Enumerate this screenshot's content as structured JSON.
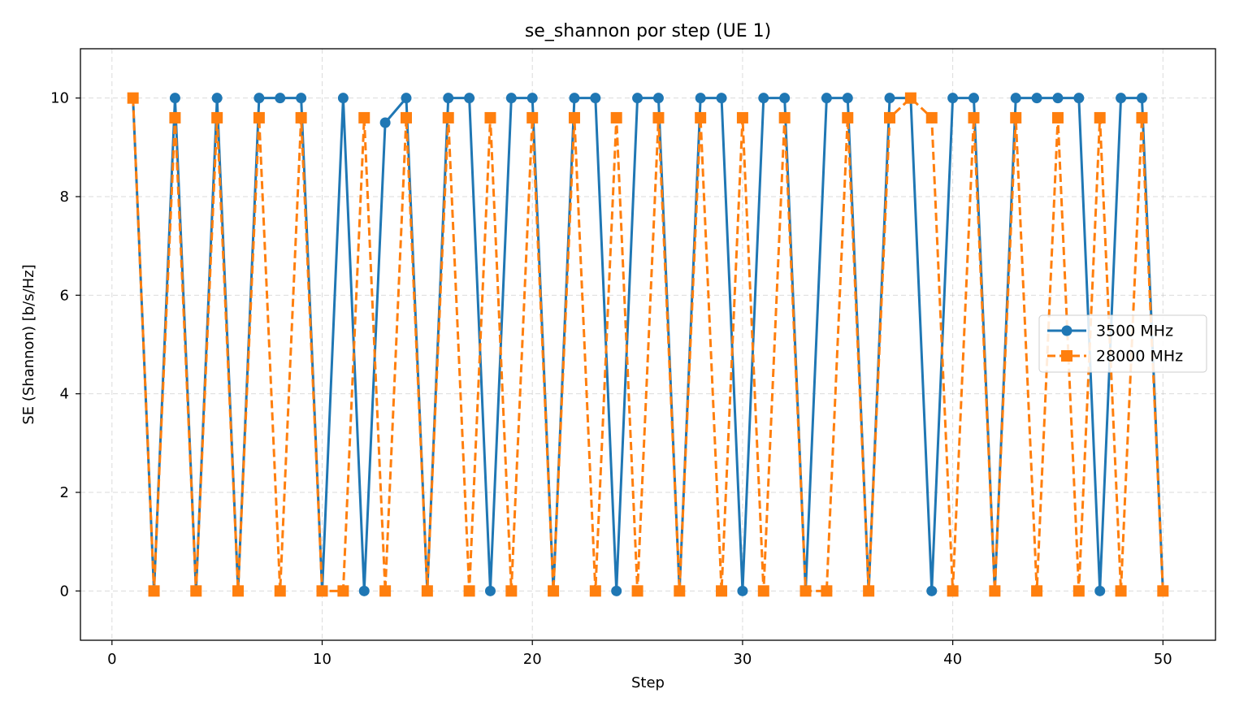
{
  "chart_data": {
    "type": "line",
    "title": "se_shannon por step (UE 1)",
    "xlabel": "Step",
    "ylabel": "SE (Shannon) [b/s/Hz]",
    "xlim": [
      -1.5,
      52.5
    ],
    "ylim": [
      -1,
      11
    ],
    "xticks": [
      0,
      10,
      20,
      30,
      40,
      50
    ],
    "yticks": [
      0,
      2,
      4,
      6,
      8,
      10
    ],
    "grid": true,
    "legend_position": "right",
    "x": [
      1,
      2,
      3,
      4,
      5,
      6,
      7,
      8,
      9,
      10,
      11,
      12,
      13,
      14,
      15,
      16,
      17,
      18,
      19,
      20,
      21,
      22,
      23,
      24,
      25,
      26,
      27,
      28,
      29,
      30,
      31,
      32,
      33,
      34,
      35,
      36,
      37,
      38,
      39,
      40,
      41,
      42,
      43,
      44,
      45,
      46,
      47,
      48,
      49,
      50
    ],
    "series": [
      {
        "name": "3500 MHz",
        "color": "#1f77b4",
        "marker": "circle",
        "linestyle": "solid",
        "values": [
          10,
          0,
          10,
          0,
          10,
          0,
          10,
          10,
          10,
          0,
          10,
          0,
          9.5,
          10,
          0,
          10,
          10,
          0,
          10,
          10,
          0,
          10,
          10,
          0,
          10,
          10,
          0,
          10,
          10,
          0,
          10,
          10,
          0,
          10,
          10,
          0,
          10,
          10,
          0,
          10,
          10,
          0,
          10,
          10,
          10,
          10,
          0,
          10,
          10,
          0
        ]
      },
      {
        "name": "28000 MHz",
        "color": "#ff7f0e",
        "marker": "square",
        "linestyle": "dashed",
        "values": [
          10,
          0,
          9.6,
          0,
          9.6,
          0,
          9.6,
          0,
          9.6,
          0,
          0,
          9.6,
          0,
          9.6,
          0,
          9.6,
          0,
          9.6,
          0,
          9.6,
          0,
          9.6,
          0,
          9.6,
          0,
          9.6,
          0,
          9.6,
          0,
          9.6,
          0,
          9.6,
          0,
          0,
          9.6,
          0,
          9.6,
          10,
          9.6,
          0,
          9.6,
          0,
          9.6,
          0,
          9.6,
          0,
          9.6,
          0,
          9.6,
          0
        ]
      }
    ]
  }
}
